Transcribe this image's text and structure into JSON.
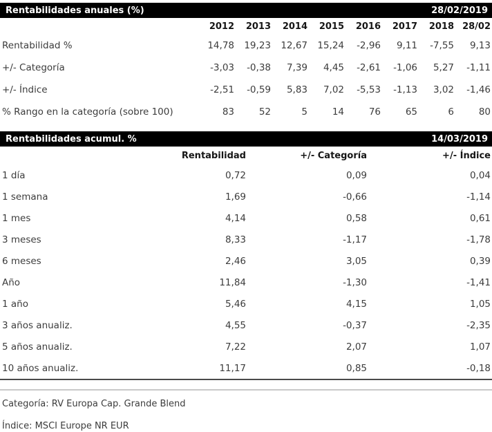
{
  "annual": {
    "title": "Rentabilidades anuales (%)",
    "date": "28/02/2019",
    "columns": [
      "2012",
      "2013",
      "2014",
      "2015",
      "2016",
      "2017",
      "2018",
      "28/02"
    ],
    "rows": [
      {
        "label": "Rentabilidad %",
        "values": [
          "14,78",
          "19,23",
          "12,67",
          "15,24",
          "-2,96",
          "9,11",
          "-7,55",
          "9,13"
        ]
      },
      {
        "label": "+/- Categoría",
        "values": [
          "-3,03",
          "-0,38",
          "7,39",
          "4,45",
          "-2,61",
          "-1,06",
          "5,27",
          "-1,11"
        ]
      },
      {
        "label": "+/- Índice",
        "values": [
          "-2,51",
          "-0,59",
          "5,83",
          "7,02",
          "-5,53",
          "-1,13",
          "3,02",
          "-1,46"
        ]
      },
      {
        "label": "% Rango en la categoría (sobre 100)",
        "values": [
          "83",
          "52",
          "5",
          "14",
          "76",
          "65",
          "6",
          "80"
        ]
      }
    ]
  },
  "cumulative": {
    "title": "Rentabilidades acumul. %",
    "date": "14/03/2019",
    "columns": [
      "Rentabilidad",
      "+/- Categoría",
      "+/- Índice"
    ],
    "rows": [
      {
        "label": "1 día",
        "values": [
          "0,72",
          "0,09",
          "0,04"
        ]
      },
      {
        "label": "1 semana",
        "values": [
          "1,69",
          "-0,66",
          "-1,14"
        ]
      },
      {
        "label": "1 mes",
        "values": [
          "4,14",
          "0,58",
          "0,61"
        ]
      },
      {
        "label": "3 meses",
        "values": [
          "8,33",
          "-1,17",
          "-1,78"
        ]
      },
      {
        "label": "6 meses",
        "values": [
          "2,46",
          "3,05",
          "0,39"
        ]
      },
      {
        "label": "Año",
        "values": [
          "11,84",
          "-1,30",
          "-1,41"
        ]
      },
      {
        "label": "1 año",
        "values": [
          "5,46",
          "4,15",
          "1,05"
        ]
      },
      {
        "label": "3 años anualiz.",
        "values": [
          "4,55",
          "-0,37",
          "-2,35"
        ]
      },
      {
        "label": "5 años anualiz.",
        "values": [
          "7,22",
          "2,07",
          "1,07"
        ]
      },
      {
        "label": "10 años anualiz.",
        "values": [
          "11,17",
          "0,85",
          "-0,18"
        ]
      }
    ]
  },
  "footer": {
    "category": "Categoría: RV Europa Cap. Grande Blend",
    "index": "Índice: MSCI Europe NR EUR"
  },
  "colors": {
    "header_bg": "#000000",
    "header_text": "#ffffff",
    "body_text": "#3c3c3c"
  },
  "chart_data": [
    {
      "type": "table",
      "title": "Rentabilidades anuales (%)",
      "as_of_date": "28/02/2019",
      "categories": [
        "2012",
        "2013",
        "2014",
        "2015",
        "2016",
        "2017",
        "2018",
        "28/02"
      ],
      "series": [
        {
          "name": "Rentabilidad %",
          "values": [
            14.78,
            19.23,
            12.67,
            15.24,
            -2.96,
            9.11,
            -7.55,
            9.13
          ]
        },
        {
          "name": "+/- Categoría",
          "values": [
            -3.03,
            -0.38,
            7.39,
            4.45,
            -2.61,
            -1.06,
            5.27,
            -1.11
          ]
        },
        {
          "name": "+/- Índice",
          "values": [
            -2.51,
            -0.59,
            5.83,
            7.02,
            -5.53,
            -1.13,
            3.02,
            -1.46
          ]
        },
        {
          "name": "% Rango en la categoría (sobre 100)",
          "values": [
            83,
            52,
            5,
            14,
            76,
            65,
            6,
            80
          ]
        }
      ]
    },
    {
      "type": "table",
      "title": "Rentabilidades acumul. %",
      "as_of_date": "14/03/2019",
      "categories": [
        "1 día",
        "1 semana",
        "1 mes",
        "3 meses",
        "6 meses",
        "Año",
        "1 año",
        "3 años anualiz.",
        "5 años anualiz.",
        "10 años anualiz."
      ],
      "series": [
        {
          "name": "Rentabilidad",
          "values": [
            0.72,
            1.69,
            4.14,
            8.33,
            2.46,
            11.84,
            5.46,
            4.55,
            7.22,
            11.17
          ]
        },
        {
          "name": "+/- Categoría",
          "values": [
            0.09,
            -0.66,
            0.58,
            -1.17,
            3.05,
            -1.3,
            4.15,
            -0.37,
            2.07,
            0.85
          ]
        },
        {
          "name": "+/- Índice",
          "values": [
            0.04,
            -1.14,
            0.61,
            -1.78,
            0.39,
            -1.41,
            1.05,
            -2.35,
            1.07,
            -0.18
          ]
        }
      ]
    }
  ]
}
